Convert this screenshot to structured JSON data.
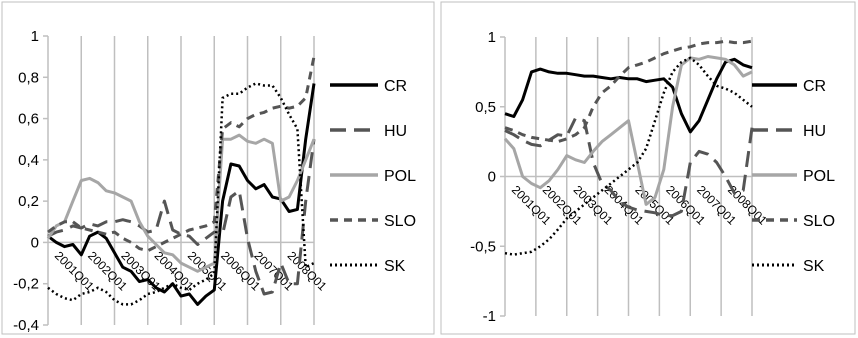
{
  "chart_data": [
    {
      "type": "line",
      "title": "",
      "xlabel": "",
      "ylabel": "",
      "ylim": [
        -0.4,
        1
      ],
      "y_ticks": [
        "1",
        "0,8",
        "0,6",
        "0,4",
        "0,2",
        "0",
        "-0,2",
        "-0,4"
      ],
      "x_ticks": [
        "2001Q01",
        "2002Q01",
        "2003Q01",
        "2004Q01",
        "2005Q01",
        "2006Q01",
        "2007Q01",
        "2008Q01"
      ],
      "grid": "vertical",
      "legend": "right",
      "series": [
        {
          "name": "CR",
          "style": "solid",
          "color": "#000000",
          "width": 3,
          "values": [
            0.03,
            0.0,
            -0.02,
            -0.01,
            -0.06,
            0.03,
            0.05,
            0.02,
            -0.05,
            -0.12,
            -0.14,
            -0.19,
            -0.18,
            -0.22,
            -0.24,
            -0.2,
            -0.26,
            -0.25,
            -0.3,
            -0.26,
            -0.23,
            0.2,
            0.38,
            0.37,
            0.3,
            0.26,
            0.28,
            0.22,
            0.21,
            0.15,
            0.16,
            0.5,
            0.77
          ]
        },
        {
          "name": "HU",
          "style": "longdash",
          "color": "#555555",
          "width": 3,
          "values": [
            0.03,
            0.05,
            0.06,
            0.08,
            0.07,
            0.09,
            0.08,
            0.1,
            0.1,
            0.11,
            0.1,
            0.08,
            0.05,
            0.06,
            0.2,
            0.06,
            0.04,
            0.03,
            -0.01,
            0.02,
            0.05,
            0.04,
            0.22,
            0.25,
            0.02,
            -0.14,
            -0.25,
            -0.24,
            -0.1,
            -0.2,
            -0.2,
            0.2,
            0.5
          ]
        },
        {
          "name": "POL",
          "style": "solid",
          "color": "#a6a6a6",
          "width": 3,
          "values": [
            0.02,
            0.08,
            0.1,
            0.2,
            0.3,
            0.31,
            0.29,
            0.25,
            0.24,
            0.22,
            0.2,
            0.1,
            0.03,
            -0.01,
            -0.05,
            -0.06,
            -0.1,
            -0.12,
            -0.14,
            -0.12,
            -0.1,
            0.5,
            0.5,
            0.52,
            0.49,
            0.48,
            0.5,
            0.48,
            0.2,
            0.22,
            0.3,
            0.4,
            0.5
          ]
        },
        {
          "name": "SLO",
          "style": "dash",
          "color": "#555555",
          "width": 3,
          "values": [
            0.05,
            0.08,
            0.1,
            0.1,
            0.07,
            0.06,
            0.05,
            0.04,
            0.05,
            0.02,
            0.0,
            -0.03,
            -0.04,
            -0.02,
            0.0,
            0.02,
            0.04,
            0.06,
            0.07,
            0.08,
            0.1,
            0.55,
            0.58,
            0.56,
            0.6,
            0.62,
            0.63,
            0.65,
            0.66,
            0.65,
            0.66,
            0.7,
            0.9
          ]
        },
        {
          "name": "SK",
          "style": "dotted",
          "color": "#000000",
          "width": 2.5,
          "values": [
            -0.22,
            -0.25,
            -0.27,
            -0.28,
            -0.25,
            -0.24,
            -0.22,
            -0.24,
            -0.28,
            -0.3,
            -0.3,
            -0.28,
            -0.25,
            -0.24,
            -0.22,
            -0.2,
            -0.22,
            -0.23,
            -0.2,
            -0.18,
            -0.15,
            0.7,
            0.72,
            0.72,
            0.75,
            0.77,
            0.76,
            0.76,
            0.7,
            0.62,
            0.55,
            -0.12,
            -0.1
          ]
        }
      ]
    },
    {
      "type": "line",
      "title": "",
      "xlabel": "",
      "ylabel": "",
      "ylim": [
        -1,
        1
      ],
      "y_ticks": [
        "1",
        "0,5",
        "0",
        "-0,5",
        "-1"
      ],
      "x_ticks": [
        "2001Q01",
        "2002Q01",
        "2003Q01",
        "2004Q01",
        "2005Q01",
        "2006Q01",
        "2007Q01",
        "2008Q01"
      ],
      "grid": "vertical",
      "legend": "right",
      "series": [
        {
          "name": "CR",
          "style": "solid",
          "color": "#000000",
          "width": 3,
          "values": [
            0.45,
            0.43,
            0.55,
            0.75,
            0.77,
            0.75,
            0.74,
            0.74,
            0.73,
            0.72,
            0.72,
            0.71,
            0.7,
            0.71,
            0.7,
            0.7,
            0.68,
            0.69,
            0.7,
            0.64,
            0.45,
            0.32,
            0.4,
            0.55,
            0.7,
            0.82,
            0.84,
            0.8,
            0.78
          ]
        },
        {
          "name": "HU",
          "style": "longdash",
          "color": "#555555",
          "width": 3,
          "values": [
            0.33,
            0.3,
            0.26,
            0.23,
            0.22,
            0.26,
            0.3,
            0.29,
            0.42,
            0.4,
            0.1,
            -0.05,
            -0.1,
            -0.18,
            -0.22,
            -0.24,
            -0.25,
            -0.26,
            -0.28,
            -0.28,
            -0.25,
            0.1,
            0.18,
            0.16,
            0.1,
            0.0,
            -0.12,
            -0.1,
            0.35
          ]
        },
        {
          "name": "POL",
          "style": "solid",
          "color": "#a6a6a6",
          "width": 3,
          "values": [
            0.27,
            0.2,
            0.0,
            -0.05,
            -0.08,
            -0.03,
            0.05,
            0.15,
            0.12,
            0.1,
            0.18,
            0.25,
            0.3,
            0.35,
            0.4,
            0.1,
            -0.2,
            -0.15,
            0.05,
            0.5,
            0.8,
            0.85,
            0.84,
            0.86,
            0.85,
            0.84,
            0.8,
            0.72,
            0.75
          ]
        },
        {
          "name": "SLO",
          "style": "dash",
          "color": "#555555",
          "width": 3,
          "values": [
            0.35,
            0.33,
            0.3,
            0.28,
            0.27,
            0.26,
            0.25,
            0.27,
            0.3,
            0.35,
            0.5,
            0.6,
            0.65,
            0.72,
            0.78,
            0.8,
            0.82,
            0.85,
            0.88,
            0.9,
            0.92,
            0.93,
            0.95,
            0.96,
            0.96,
            0.97,
            0.96,
            0.96,
            0.97
          ]
        },
        {
          "name": "SK",
          "style": "dotted",
          "color": "#000000",
          "width": 2.5,
          "values": [
            -0.55,
            -0.56,
            -0.55,
            -0.54,
            -0.5,
            -0.45,
            -0.38,
            -0.3,
            -0.25,
            -0.2,
            -0.15,
            -0.1,
            -0.05,
            0.0,
            0.05,
            0.1,
            0.2,
            0.4,
            0.6,
            0.75,
            0.82,
            0.85,
            0.8,
            0.72,
            0.65,
            0.63,
            0.6,
            0.55,
            0.5
          ]
        }
      ]
    }
  ]
}
